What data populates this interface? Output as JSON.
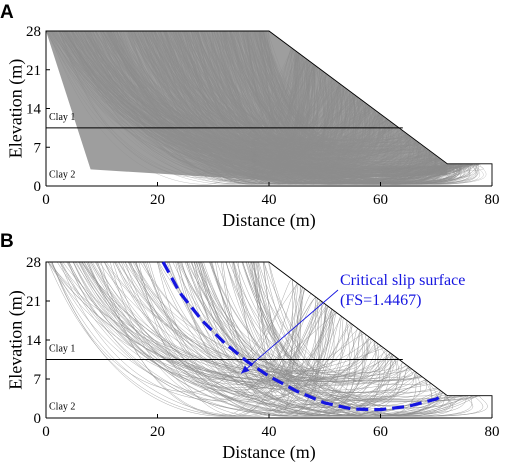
{
  "chart_data": [
    {
      "panel": "A",
      "type": "line",
      "xlabel": "Distance (m)",
      "ylabel": "Elevation (m)",
      "xlim": [
        0,
        80
      ],
      "ylim": [
        0,
        28
      ],
      "xticks": [
        0,
        20,
        40,
        60,
        80
      ],
      "yticks": [
        0,
        7,
        14,
        21,
        28
      ],
      "grid": false,
      "slope_profile": {
        "x": [
          0,
          0,
          40,
          72,
          80,
          80
        ],
        "y": [
          0,
          28,
          28,
          4,
          4,
          0
        ]
      },
      "layer_boundary": {
        "x": [
          0,
          64
        ],
        "y": [
          10.5,
          10.5
        ]
      },
      "layer_labels": [
        "Clay 1",
        "Clay 2"
      ],
      "trial_slip_surfaces": "dense (fills slope)"
    },
    {
      "panel": "B",
      "type": "line",
      "xlabel": "Distance (m)",
      "ylabel": "Elevation (m)",
      "xlim": [
        0,
        80
      ],
      "ylim": [
        0,
        28
      ],
      "xticks": [
        0,
        20,
        40,
        60,
        80
      ],
      "yticks": [
        0,
        7,
        14,
        21,
        28
      ],
      "grid": false,
      "slope_profile": {
        "x": [
          0,
          0,
          40,
          72,
          80,
          80
        ],
        "y": [
          0,
          28,
          28,
          4,
          4,
          0
        ]
      },
      "layer_boundary": {
        "x": [
          0,
          64
        ],
        "y": [
          10.5,
          10.5
        ]
      },
      "layer_labels": [
        "Clay 1",
        "Clay 2"
      ],
      "critical_slip_surface": {
        "x": [
          21,
          24,
          28,
          32,
          36,
          40,
          45,
          50,
          55,
          60,
          65,
          70,
          71
        ],
        "y": [
          28,
          22.5,
          17.5,
          13.5,
          10.2,
          7.5,
          4.8,
          2.7,
          1.6,
          1.5,
          2.1,
          3.4,
          4
        ],
        "color": "#1515e0"
      },
      "annotation": {
        "lines": [
          "Critical slip surface",
          "(FS=1.4467)"
        ],
        "points_to": [
          35,
          8
        ]
      }
    }
  ],
  "panels": {
    "a": {
      "letter": "A"
    },
    "b": {
      "letter": "B"
    }
  },
  "colors": {
    "trial_surfaces": "#8c8c8c",
    "critical": "#1515e0",
    "axes": "#000000"
  }
}
